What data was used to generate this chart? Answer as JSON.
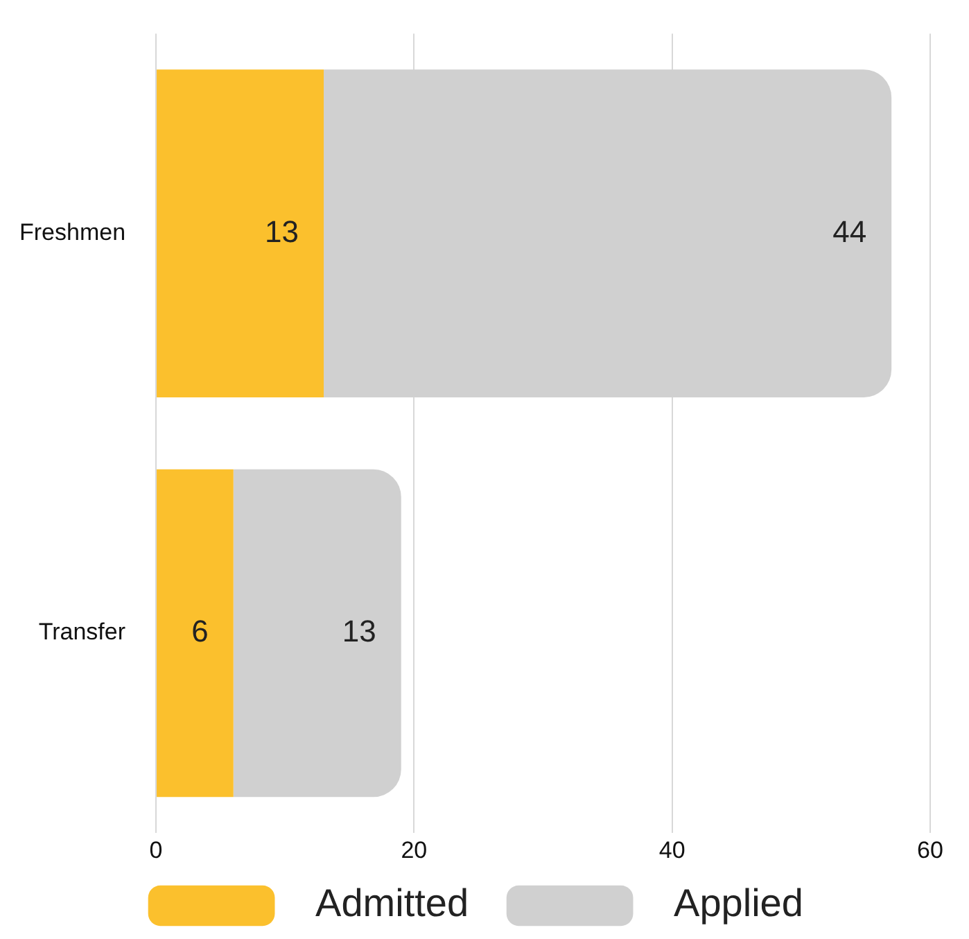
{
  "chart_data": {
    "type": "bar",
    "orientation": "horizontal",
    "stacked": true,
    "categories": [
      "Freshmen",
      "Transfer"
    ],
    "series": [
      {
        "name": "Admitted",
        "color": "#fbc02d",
        "values": [
          13,
          6
        ]
      },
      {
        "name": "Applied",
        "color": "#d0d0d0",
        "values": [
          44,
          13
        ]
      }
    ],
    "data_labels": true,
    "xlim": [
      0,
      60
    ],
    "xticks": [
      0,
      20,
      40,
      60
    ],
    "grid": "x",
    "legend": "bottom"
  }
}
